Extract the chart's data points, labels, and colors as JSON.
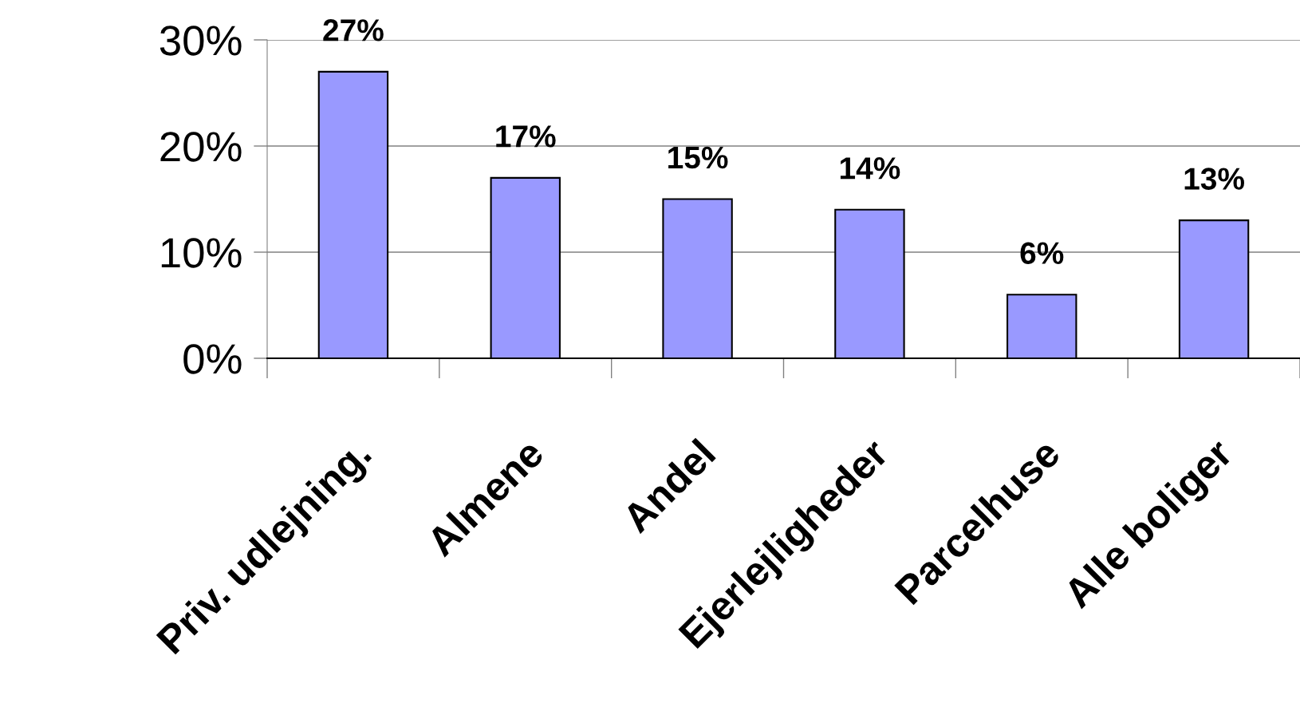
{
  "chart_data": {
    "type": "bar",
    "categories": [
      "Priv. udlejning.",
      "Almene",
      "Andel",
      "Ejerlejligheder",
      "Parcelhuse",
      "Alle boliger"
    ],
    "values": [
      27,
      17,
      15,
      14,
      6,
      13
    ],
    "color": "#9999ff",
    "value_labels": [
      "27%",
      "17%",
      "15%",
      "14%",
      "6%",
      "13%"
    ],
    "ylim": [
      0,
      30
    ],
    "yticks": [
      {
        "value": 0,
        "label": "0%"
      },
      {
        "value": 10,
        "label": "10%"
      },
      {
        "value": 20,
        "label": "20%"
      },
      {
        "value": 30,
        "label": "30%"
      }
    ],
    "grid": "y"
  }
}
